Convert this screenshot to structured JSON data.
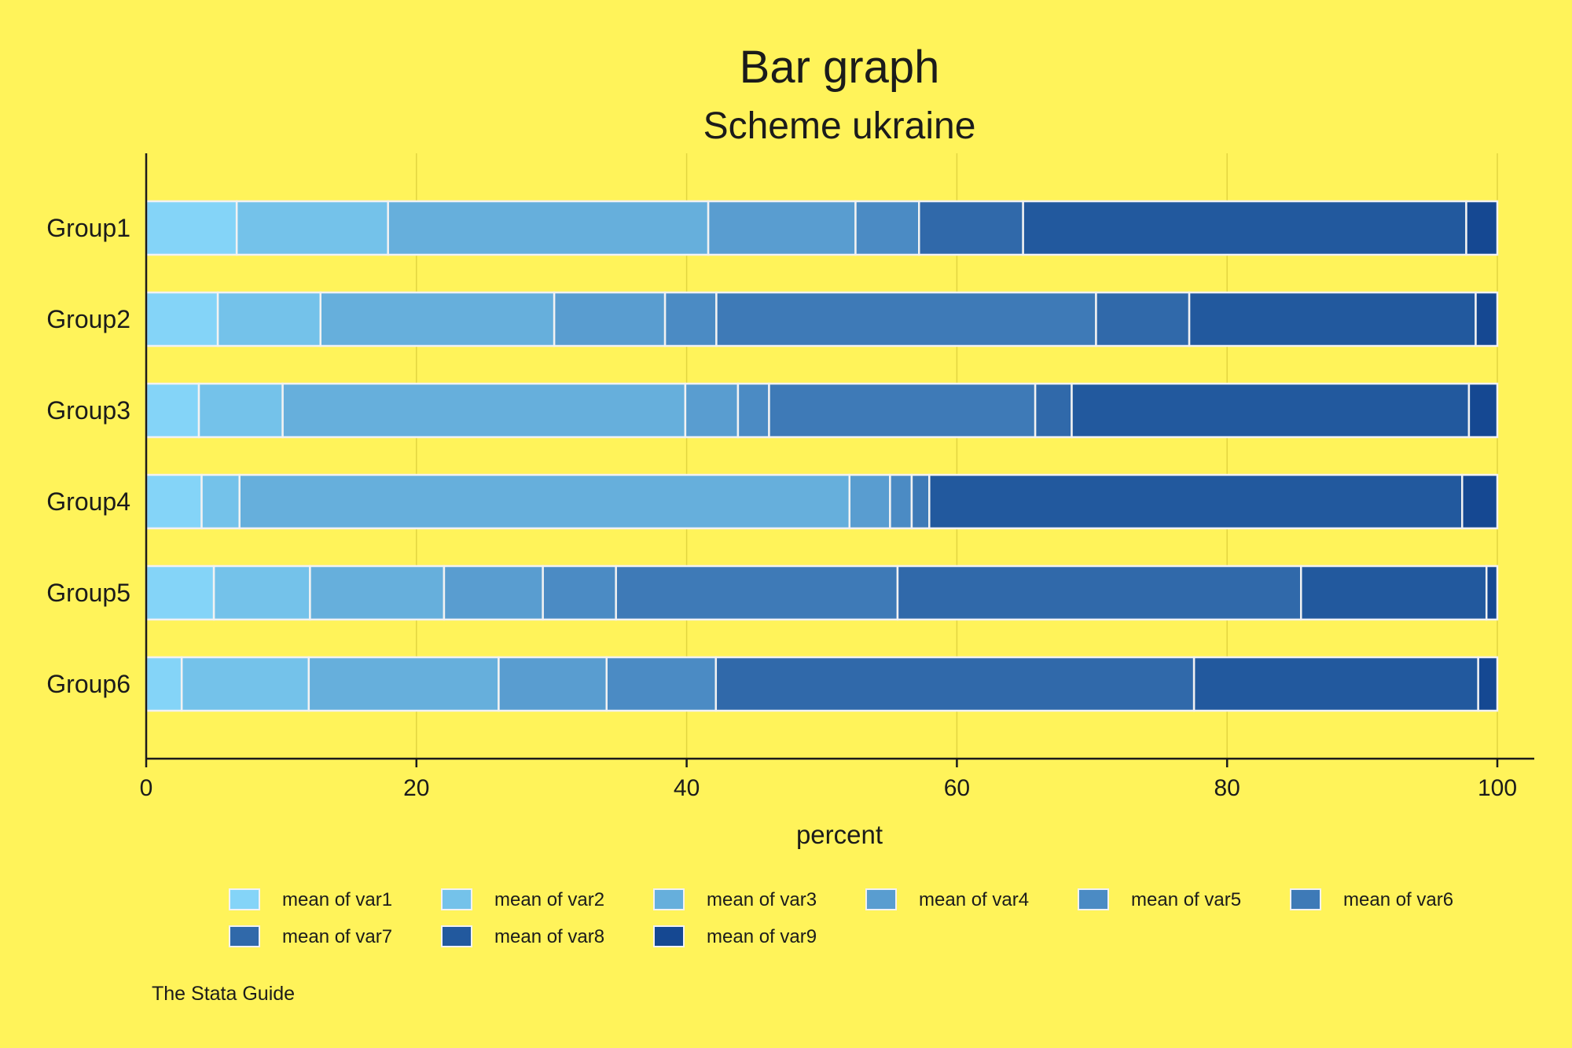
{
  "chart_data": {
    "type": "bar",
    "orientation": "horizontal",
    "stacked": true,
    "title": "Bar graph",
    "subtitle": "Scheme ukraine",
    "xlabel": "percent",
    "ylabel": "",
    "xlim": [
      0,
      100
    ],
    "xticks": [
      0,
      20,
      40,
      60,
      80,
      100
    ],
    "grid": true,
    "legend_position": "bottom",
    "note": "The Stata Guide",
    "categories": [
      "Group1",
      "Group2",
      "Group3",
      "Group4",
      "Group5",
      "Group6"
    ],
    "series": [
      {
        "name": "mean of var1",
        "color": "#84d4f8",
        "values": [
          6.7,
          5.3,
          3.9,
          4.1,
          5.0,
          2.6
        ]
      },
      {
        "name": "mean of var2",
        "color": "#74c2ea",
        "values": [
          11.2,
          7.6,
          6.2,
          2.8,
          7.1,
          9.3
        ]
      },
      {
        "name": "mean of var3",
        "color": "#66afdc",
        "values": [
          23.7,
          17.3,
          29.8,
          45.1,
          9.9,
          13.9
        ]
      },
      {
        "name": "mean of var4",
        "color": "#599dd0",
        "values": [
          10.9,
          8.2,
          3.9,
          3.0,
          7.3,
          7.9
        ]
      },
      {
        "name": "mean of var5",
        "color": "#4b8bc4",
        "values": [
          4.7,
          3.8,
          2.3,
          1.6,
          5.4,
          8.0
        ]
      },
      {
        "name": "mean of var6",
        "color": "#3e7ab7",
        "values": [
          0.0,
          28.1,
          19.7,
          1.3,
          20.8,
          0.0
        ]
      },
      {
        "name": "mean of var7",
        "color": "#3069aa",
        "values": [
          7.7,
          6.9,
          2.7,
          0.0,
          29.8,
          35.0
        ]
      },
      {
        "name": "mean of var8",
        "color": "#22599e",
        "values": [
          32.8,
          21.2,
          29.4,
          39.4,
          13.7,
          20.8
        ]
      },
      {
        "name": "mean of var9",
        "color": "#154892",
        "values": [
          2.3,
          1.6,
          2.1,
          2.6,
          0.8,
          1.4
        ]
      }
    ]
  },
  "colors": {
    "background": "#fff35a",
    "grid": "#e2d540",
    "axis": "#1b1b1b",
    "bar_outline": "#f2f2f2"
  }
}
